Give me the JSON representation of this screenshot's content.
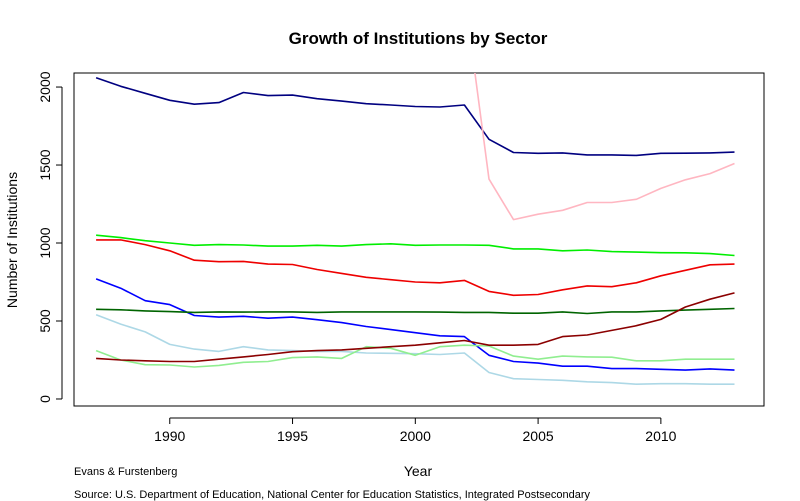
{
  "chart_data": {
    "type": "line",
    "title": "Growth of Institutions by Sector",
    "xlabel": "Year",
    "ylabel": "Number of Institutions",
    "xlim": [
      1986.1,
      2014.2
    ],
    "ylim": [
      -45,
      2090
    ],
    "x_ticks": [
      1990,
      1995,
      2000,
      2005,
      2010
    ],
    "y_ticks": [
      0,
      500,
      1000,
      1500,
      2000
    ],
    "grid": false,
    "legend": "none",
    "x": [
      1987,
      1988,
      1989,
      1990,
      1991,
      1992,
      1993,
      1994,
      1995,
      1996,
      1997,
      1998,
      1999,
      2000,
      2001,
      2002,
      2003,
      2004,
      2005,
      2006,
      2007,
      2008,
      2009,
      2010,
      2011,
      2012,
      2013
    ],
    "series": [
      {
        "color": "#000080",
        "values": [
          2060,
          2005,
          1960,
          1915,
          1890,
          1900,
          1965,
          1945,
          1948,
          1925,
          1910,
          1893,
          1885,
          1875,
          1872,
          1885,
          1665,
          1580,
          1575,
          1578,
          1565,
          1565,
          1562,
          1575,
          1576,
          1578,
          1583
        ]
      },
      {
        "color": "#ffb6c1",
        "values": [
          null,
          null,
          null,
          null,
          null,
          null,
          null,
          null,
          null,
          null,
          null,
          null,
          null,
          null,
          null,
          2600,
          1410,
          1150,
          1185,
          1210,
          1260,
          1260,
          1280,
          1350,
          1405,
          1445,
          1510
        ]
      },
      {
        "color": "#00ee00",
        "values": [
          1050,
          1035,
          1015,
          1000,
          985,
          990,
          987,
          980,
          980,
          985,
          980,
          990,
          995,
          985,
          987,
          987,
          985,
          962,
          962,
          950,
          955,
          945,
          942,
          938,
          937,
          932,
          920
        ]
      },
      {
        "color": "#ee0000",
        "values": [
          1020,
          1020,
          990,
          950,
          890,
          880,
          882,
          865,
          862,
          830,
          805,
          780,
          765,
          750,
          745,
          760,
          690,
          665,
          670,
          700,
          725,
          720,
          745,
          790,
          825,
          860,
          865
        ]
      },
      {
        "color": "#0000ff",
        "values": [
          770,
          710,
          630,
          605,
          535,
          525,
          530,
          518,
          525,
          508,
          490,
          465,
          445,
          425,
          405,
          400,
          280,
          240,
          230,
          210,
          210,
          195,
          195,
          190,
          185,
          193,
          185
        ]
      },
      {
        "color": "#006400",
        "values": [
          575,
          572,
          565,
          560,
          555,
          558,
          557,
          558,
          558,
          555,
          558,
          558,
          558,
          558,
          557,
          555,
          555,
          550,
          550,
          558,
          548,
          558,
          558,
          565,
          570,
          575,
          580
        ]
      },
      {
        "color": "#add8e6",
        "values": [
          540,
          480,
          430,
          350,
          320,
          305,
          335,
          315,
          310,
          305,
          305,
          295,
          293,
          290,
          285,
          295,
          170,
          130,
          125,
          120,
          110,
          105,
          95,
          98,
          98,
          95,
          95
        ]
      },
      {
        "color": "#90ee90",
        "values": [
          310,
          250,
          220,
          218,
          205,
          215,
          235,
          240,
          265,
          270,
          260,
          335,
          325,
          280,
          335,
          345,
          340,
          275,
          255,
          275,
          270,
          268,
          245,
          245,
          255,
          255,
          255
        ]
      },
      {
        "color": "#8b0000",
        "values": [
          260,
          250,
          245,
          240,
          240,
          255,
          270,
          285,
          303,
          310,
          315,
          325,
          335,
          345,
          360,
          375,
          345,
          345,
          350,
          400,
          410,
          440,
          470,
          510,
          590,
          640,
          680
        ]
      }
    ]
  },
  "footer": {
    "credit": "Evans & Furstenberg",
    "source": "Source: U.S. Department of Education, National Center for Education Statistics, Integrated Postsecondary"
  }
}
